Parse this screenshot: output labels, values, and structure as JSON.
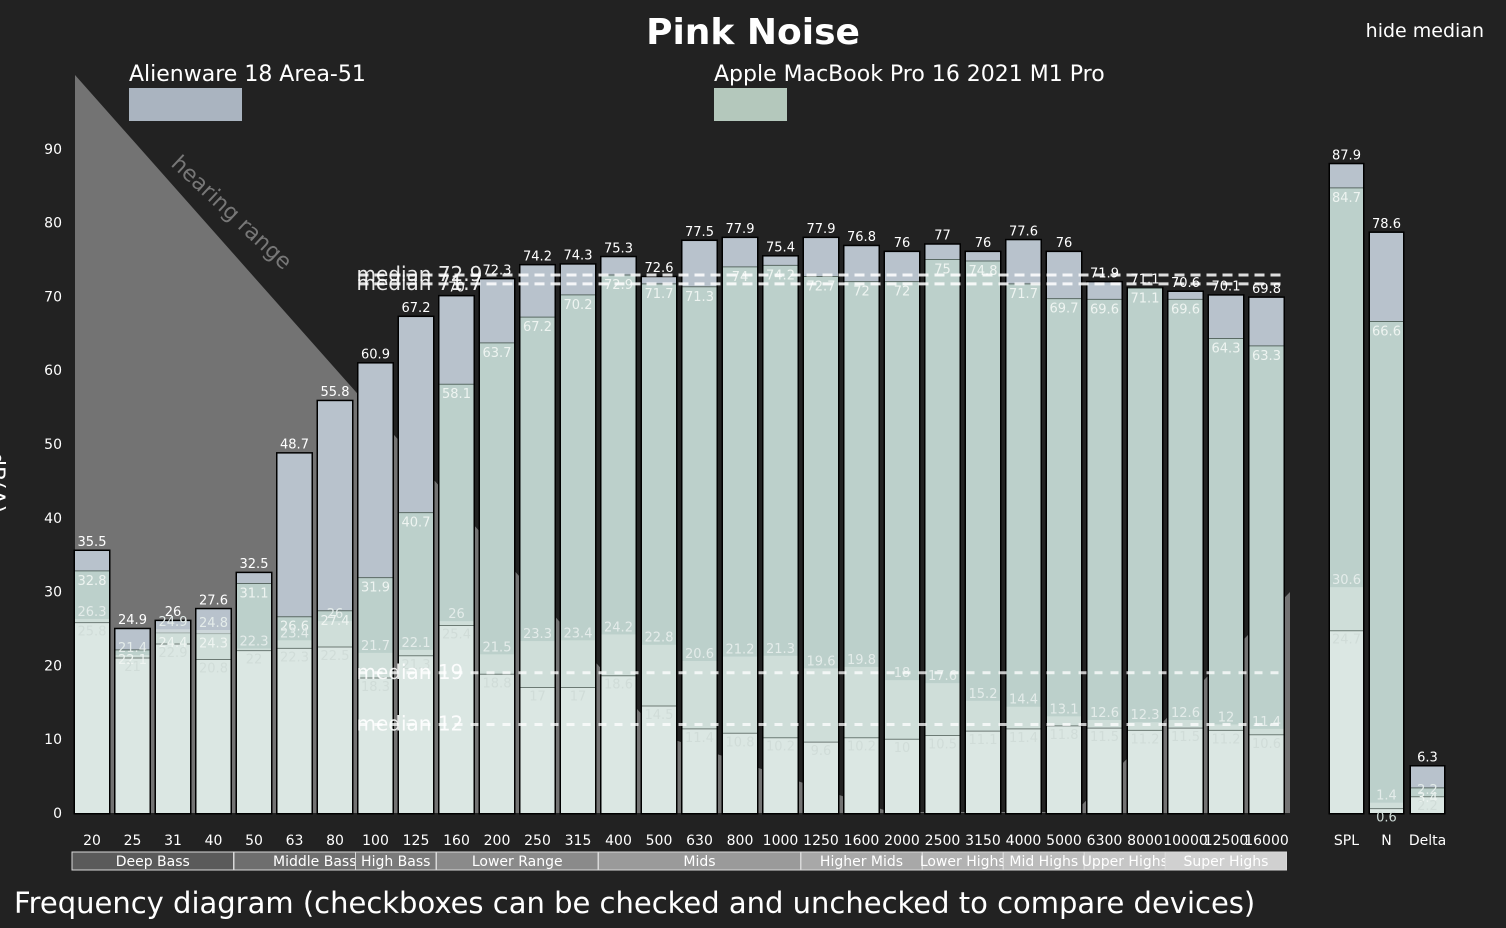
{
  "title": "Pink Noise",
  "hide_median_label": "hide median",
  "caption": "Frequency diagram (checkboxes can be checked and unchecked to compare devices)",
  "devices": [
    {
      "name": "Alienware 18 Area-51",
      "checkbox_color": "#aab4c0",
      "checkbox_count": 3
    },
    {
      "name": "Apple MacBook Pro 16 2021 M1 Pro",
      "checkbox_color": "#b4c8bc",
      "checkbox_count": 2
    }
  ],
  "colors": {
    "background": "#222222",
    "alienware": "#b8c2cc",
    "apple": "#bcd2ca",
    "noise": "#dfe9e5",
    "hearing_range": "#a0a0a0"
  },
  "chart_data": {
    "type": "bar",
    "title": "Pink Noise",
    "ylabel": "dB(A)",
    "ylim": [
      0,
      100
    ],
    "yticks": [
      0,
      10,
      20,
      30,
      40,
      50,
      60,
      70,
      80,
      90
    ],
    "hearing_range_label": "hearing range",
    "categories": [
      "20",
      "25",
      "31",
      "40",
      "50",
      "63",
      "80",
      "100",
      "125",
      "160",
      "200",
      "250",
      "315",
      "400",
      "500",
      "630",
      "800",
      "1000",
      "1250",
      "1600",
      "2000",
      "2500",
      "3150",
      "4000",
      "5000",
      "6300",
      "8000",
      "10000",
      "12500",
      "16000"
    ],
    "series": [
      {
        "name": "Alienware 18 Area-51",
        "values": [
          35.5,
          24.9,
          26,
          27.6,
          32.5,
          48.7,
          55.8,
          60.9,
          67.2,
          70,
          72.3,
          74.2,
          74.3,
          75.3,
          72.6,
          77.5,
          77.9,
          75.4,
          77.9,
          76.8,
          76,
          77,
          76,
          77.6,
          76,
          71.9,
          71.1,
          70.6,
          70.1,
          69.8
        ]
      },
      {
        "name": "Apple MacBook Pro 16 2021 M1 Pro",
        "values": [
          32.8,
          22.1,
          24.4,
          24.3,
          31.1,
          26.6,
          27.4,
          31.9,
          40.7,
          58.1,
          63.7,
          67.2,
          70.2,
          72.9,
          71.7,
          71.3,
          74,
          74.2,
          72.7,
          72,
          72,
          75,
          74.8,
          71.7,
          69.7,
          69.6,
          71.1,
          69.6,
          64.3,
          63.3
        ]
      },
      {
        "name": "Alienware 18 Area-51 noise",
        "values": [
          26.3,
          21.4,
          24.9,
          24.8,
          22.3,
          23.4,
          26,
          21.7,
          22.1,
          26,
          21.5,
          23.3,
          23.4,
          24.2,
          22.8,
          20.6,
          21.2,
          21.3,
          19.6,
          19.8,
          18,
          17.6,
          15.2,
          14.4,
          13.1,
          12.6,
          12.3,
          12.6,
          12,
          11.4
        ]
      },
      {
        "name": "Apple MacBook Pro 16 2021 M1 Pro noise",
        "values": [
          25.8,
          21,
          22.9,
          20.8,
          22,
          22.3,
          22.5,
          18.3,
          21.3,
          25.4,
          18.8,
          17,
          17,
          18.6,
          14.5,
          11.4,
          10.8,
          10.2,
          9.6,
          10.2,
          10,
          10.5,
          11.1,
          11.4,
          11.8,
          11.5,
          11.2,
          11.5,
          11.2,
          10.6
        ]
      }
    ],
    "medians": [
      {
        "label": "median 72.9",
        "value": 72.9
      },
      {
        "label": "median 71.7",
        "value": 71.7
      },
      {
        "label": "median 19",
        "value": 19
      },
      {
        "label": "median 12",
        "value": 12
      }
    ],
    "summary": {
      "categories": [
        "SPL",
        "N",
        "Delta"
      ],
      "series": [
        {
          "name": "Alienware 18 Area-51",
          "values": [
            87.9,
            78.6,
            6.3
          ]
        },
        {
          "name": "Apple MacBook Pro 16 2021 M1 Pro",
          "values": [
            84.7,
            66.6,
            3.4
          ]
        },
        {
          "name": "Alienware 18 Area-51 noise",
          "values": [
            30.6,
            1.4,
            2.2
          ]
        },
        {
          "name": "Apple MacBook Pro 16 2021 M1 Pro noise",
          "values": [
            24.7,
            0.6,
            2.2
          ]
        }
      ]
    },
    "bands": [
      {
        "label": "Deep Bass",
        "from": 0,
        "to": 3
      },
      {
        "label": "Middle Bass",
        "from": 4,
        "to": 7
      },
      {
        "label": "High Bass",
        "from": 7,
        "to": 8
      },
      {
        "label": "Lower Range",
        "from": 9,
        "to": 12
      },
      {
        "label": "Mids",
        "from": 13,
        "to": 17
      },
      {
        "label": "Higher Mids",
        "from": 18,
        "to": 20
      },
      {
        "label": "Lower Highs",
        "from": 21,
        "to": 22
      },
      {
        "label": "Mid Highs",
        "from": 23,
        "to": 24
      },
      {
        "label": "Upper Highs",
        "from": 25,
        "to": 26
      },
      {
        "label": "Super Highs",
        "from": 27,
        "to": 29
      }
    ]
  }
}
